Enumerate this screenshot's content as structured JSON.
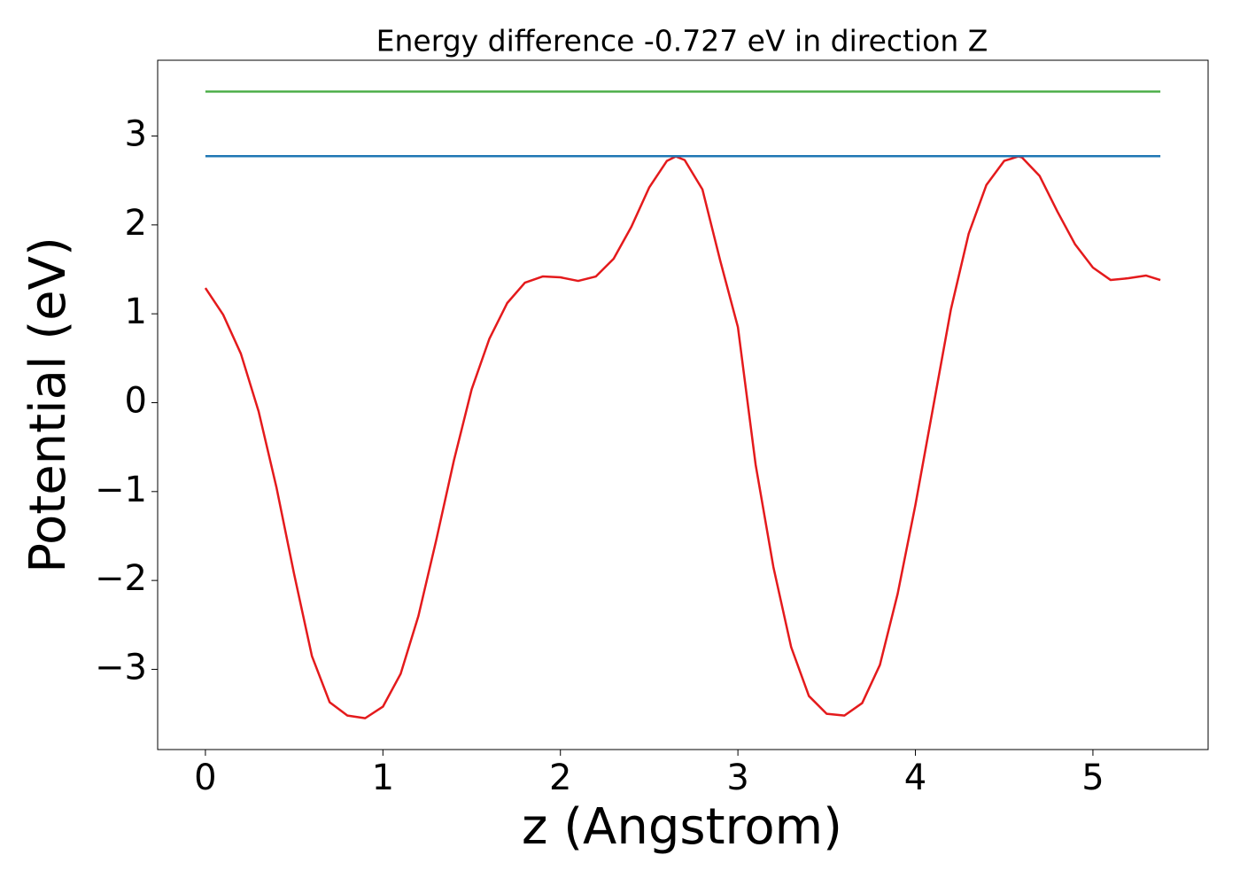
{
  "chart_data": {
    "type": "line",
    "title": "Energy difference -0.727 eV in direction Z",
    "xlabel": "z (Angstrom)",
    "ylabel": "Potential (eV)",
    "xlim": [
      -0.269,
      5.649
    ],
    "ylim": [
      -3.9025,
      3.8525
    ],
    "xticks": [
      0,
      1,
      2,
      3,
      4,
      5
    ],
    "yticks": [
      {
        "value": -3,
        "label": "−3"
      },
      {
        "value": -2,
        "label": "−2"
      },
      {
        "value": -1,
        "label": "−1"
      },
      0,
      1,
      2,
      3
    ],
    "series": [
      {
        "color": "#e41a1c",
        "x": [
          0,
          0.1,
          0.2,
          0.3,
          0.4,
          0.5,
          0.6,
          0.7,
          0.8,
          0.9,
          1.0,
          1.1,
          1.2,
          1.3,
          1.4,
          1.5,
          1.6,
          1.7,
          1.8,
          1.9,
          2.0,
          2.1,
          2.2,
          2.3,
          2.4,
          2.5,
          2.6,
          2.65,
          2.7,
          2.8,
          2.9,
          3.0,
          3.1,
          3.2,
          3.3,
          3.4,
          3.5,
          3.6,
          3.7,
          3.8,
          3.9,
          4.0,
          4.1,
          4.2,
          4.3,
          4.4,
          4.5,
          4.58,
          4.6,
          4.7,
          4.8,
          4.9,
          5.0,
          5.1,
          5.2,
          5.3,
          5.38
        ],
        "values": [
          1.29,
          0.99,
          0.55,
          -0.1,
          -0.95,
          -1.93,
          -2.85,
          -3.37,
          -3.52,
          -3.55,
          -3.42,
          -3.05,
          -2.4,
          -1.55,
          -0.65,
          0.15,
          0.72,
          1.12,
          1.35,
          1.42,
          1.41,
          1.37,
          1.42,
          1.62,
          1.98,
          2.42,
          2.72,
          2.77,
          2.73,
          2.4,
          1.6,
          0.85,
          -0.7,
          -1.85,
          -2.75,
          -3.3,
          -3.5,
          -3.52,
          -3.38,
          -2.95,
          -2.15,
          -1.15,
          -0.05,
          1.05,
          1.9,
          2.45,
          2.72,
          2.77,
          2.76,
          2.55,
          2.15,
          1.78,
          1.52,
          1.38,
          1.4,
          1.43,
          1.38
        ]
      },
      {
        "color": "#1f77b4",
        "x": [
          0,
          5.38
        ],
        "values": [
          2.773,
          2.773
        ]
      },
      {
        "color": "#4daf4a",
        "x": [
          0,
          5.38
        ],
        "values": [
          3.5,
          3.5
        ]
      }
    ]
  }
}
